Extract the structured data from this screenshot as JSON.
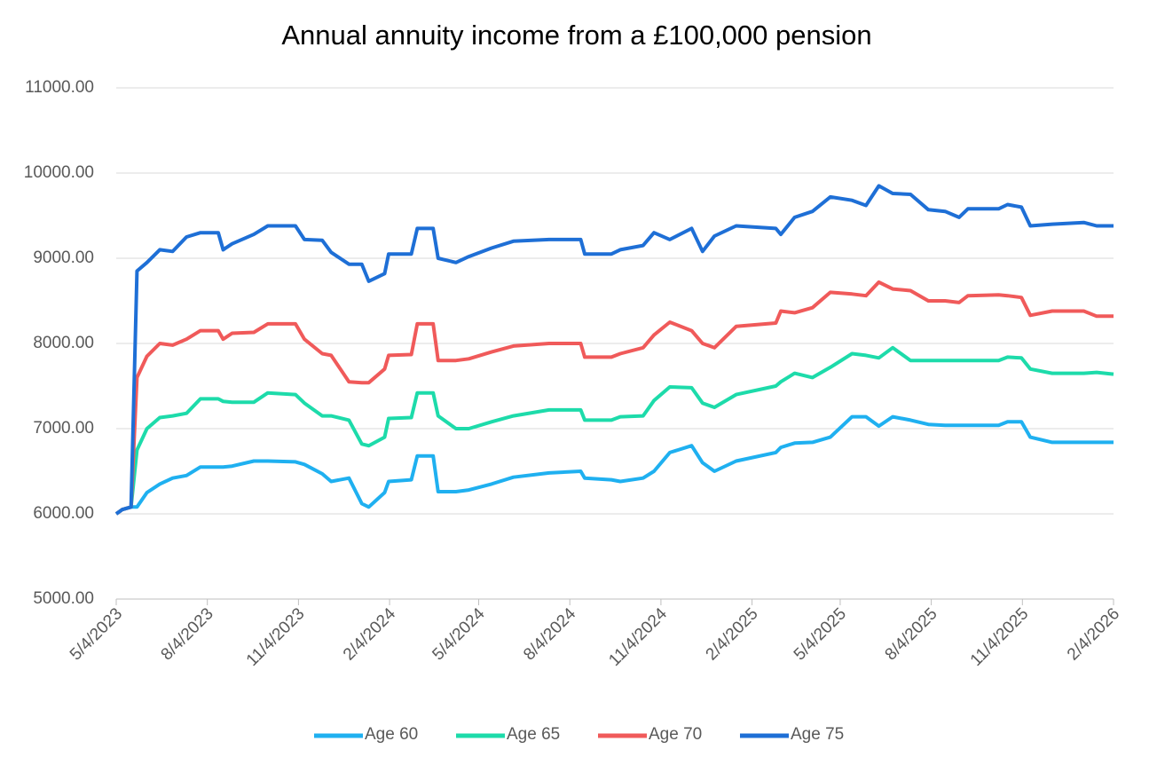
{
  "chart_data": {
    "type": "line",
    "title": "Annual annuity income from a £100,000 pension",
    "x": [
      "5/4/2023",
      "5/10/2023",
      "5/19/2023",
      "5/25/2023",
      "6/4/2023",
      "6/17/2023",
      "6/30/2023",
      "7/14/2023",
      "7/28/2023",
      "8/15/2023",
      "8/20/2023",
      "8/29/2023",
      "9/20/2023",
      "10/4/2023",
      "11/1/2023",
      "11/10/2023",
      "11/28/2023",
      "12/7/2023",
      "12/25/2023",
      "1/7/2024",
      "1/14/2024",
      "1/30/2024",
      "2/3/2024",
      "2/26/2024",
      "3/3/2024",
      "3/19/2024",
      "3/24/2024",
      "4/11/2024",
      "4/24/2024",
      "5/17/2024",
      "6/8/2024",
      "7/14/2024",
      "8/15/2024",
      "8/19/2024",
      "9/15/2024",
      "9/24/2024",
      "10/17/2024",
      "10/28/2024",
      "11/13/2024",
      "12/5/2024",
      "12/16/2024",
      "12/28/2024",
      "1/19/2025",
      "2/28/2025",
      "3/5/2025",
      "3/19/2025",
      "4/6/2025",
      "4/24/2025",
      "5/16/2025",
      "5/30/2025",
      "6/12/2025",
      "6/26/2025",
      "7/14/2025",
      "8/1/2025",
      "8/18/2025",
      "9/1/2025",
      "9/10/2025",
      "10/11/2025",
      "10/20/2025",
      "11/3/2025",
      "11/12/2025",
      "12/4/2025",
      "1/5/2026",
      "1/18/2026",
      "2/4/2026"
    ],
    "series": [
      {
        "name": "Age 60",
        "color": "#1fb0f0",
        "values": [
          6000,
          6050,
          6080,
          6080,
          6250,
          6350,
          6420,
          6450,
          6550,
          6550,
          6550,
          6560,
          6620,
          6620,
          6610,
          6580,
          6470,
          6380,
          6420,
          6120,
          6080,
          6250,
          6380,
          6400,
          6680,
          6680,
          6260,
          6260,
          6280,
          6350,
          6430,
          6480,
          6500,
          6420,
          6400,
          6380,
          6420,
          6500,
          6720,
          6800,
          6600,
          6500,
          6620,
          6720,
          6780,
          6830,
          6840,
          6900,
          7140,
          7140,
          7030,
          7140,
          7100,
          7050,
          7040,
          7040,
          7040,
          7040,
          7080,
          7080,
          6900,
          6840,
          6840,
          6840,
          6840
        ]
      },
      {
        "name": "Age 65",
        "color": "#1ddbaa",
        "values": [
          6000,
          6050,
          6080,
          6750,
          7000,
          7130,
          7150,
          7180,
          7350,
          7350,
          7320,
          7310,
          7310,
          7420,
          7400,
          7300,
          7150,
          7150,
          7100,
          6820,
          6800,
          6900,
          7120,
          7130,
          7420,
          7420,
          7150,
          7000,
          7000,
          7080,
          7150,
          7220,
          7220,
          7100,
          7100,
          7140,
          7150,
          7330,
          7490,
          7480,
          7300,
          7250,
          7400,
          7500,
          7550,
          7650,
          7600,
          7720,
          7880,
          7860,
          7830,
          7950,
          7800,
          7800,
          7800,
          7800,
          7800,
          7800,
          7840,
          7830,
          7700,
          7650,
          7650,
          7660,
          7640
        ]
      },
      {
        "name": "Age 70",
        "color": "#f05a5a",
        "values": [
          6000,
          6050,
          6080,
          7600,
          7850,
          8000,
          7980,
          8050,
          8150,
          8150,
          8050,
          8120,
          8130,
          8230,
          8230,
          8050,
          7880,
          7860,
          7550,
          7540,
          7540,
          7700,
          7860,
          7870,
          8230,
          8230,
          7800,
          7800,
          7820,
          7900,
          7970,
          8000,
          8000,
          7840,
          7840,
          7880,
          7950,
          8100,
          8250,
          8150,
          8000,
          7950,
          8200,
          8240,
          8380,
          8360,
          8420,
          8600,
          8580,
          8560,
          8720,
          8640,
          8620,
          8500,
          8500,
          8480,
          8560,
          8570,
          8560,
          8540,
          8330,
          8380,
          8380,
          8320,
          8320
        ]
      },
      {
        "name": "Age 75",
        "color": "#1e6fd6",
        "values": [
          6000,
          6050,
          6080,
          8850,
          8950,
          9100,
          9080,
          9250,
          9300,
          9300,
          9100,
          9170,
          9280,
          9380,
          9380,
          9220,
          9210,
          9070,
          8930,
          8930,
          8730,
          8820,
          9050,
          9050,
          9350,
          9350,
          9000,
          8950,
          9020,
          9120,
          9200,
          9220,
          9220,
          9050,
          9050,
          9100,
          9150,
          9300,
          9220,
          9350,
          9080,
          9260,
          9380,
          9350,
          9280,
          9480,
          9550,
          9720,
          9680,
          9620,
          9850,
          9760,
          9750,
          9570,
          9550,
          9480,
          9580,
          9580,
          9630,
          9600,
          9380,
          9400,
          9420,
          9380,
          9380
        ]
      }
    ],
    "xlim": [
      "5/4/2023",
      "2/4/2026"
    ],
    "xticks": [
      "5/4/2023",
      "8/4/2023",
      "11/4/2023",
      "2/4/2024",
      "5/4/2024",
      "8/4/2024",
      "11/4/2024",
      "2/4/2025",
      "5/4/2025",
      "8/4/2025",
      "11/4/2025",
      "2/4/2026"
    ],
    "ylim": [
      5000,
      11000
    ],
    "yticks": [
      {
        "value": 5000,
        "label": "5000.00"
      },
      {
        "value": 6000,
        "label": "6000.00"
      },
      {
        "value": 7000,
        "label": "7000.00"
      },
      {
        "value": 8000,
        "label": "8000.00"
      },
      {
        "value": 9000,
        "label": "9000.00"
      },
      {
        "value": 10000,
        "label": "10000.00"
      },
      {
        "value": 11000,
        "label": "11000.00"
      }
    ],
    "grid": true,
    "legend": "bottom"
  }
}
